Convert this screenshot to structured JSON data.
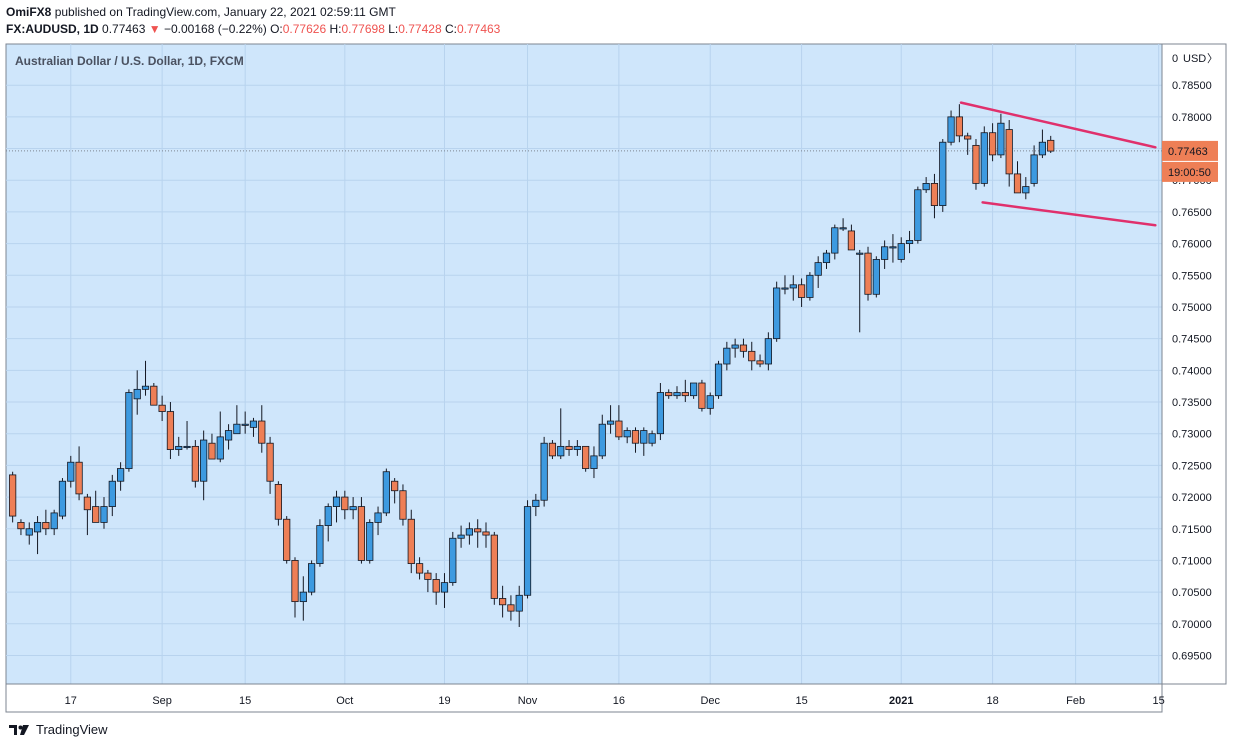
{
  "header": {
    "publisher": "OmiFX8",
    "published_text": "published on TradingView.com, January 22, 2021 02:59:11 GMT",
    "symbol": "FX:AUDUSD, 1D",
    "last": "0.77463",
    "arrow": "▼",
    "change": "−0.00168 (−0.22%)",
    "o_label": "O:",
    "o_value": "0.77626",
    "h_label": "H:",
    "h_value": "0.77698",
    "l_label": "L:",
    "l_value": "0.77428",
    "c_label": "C:",
    "c_value": "0.77463"
  },
  "footer": {
    "brand": "TradingView",
    "logo_icon": "tradingview-logo-icon"
  },
  "colors": {
    "background": "#cfe6fb",
    "grid": "#b8d3ee",
    "up": "#3d9ae0",
    "down": "#ee7f56",
    "wick": "#131722",
    "trendline": "#e0306c",
    "price_tag": "#ee7f56"
  },
  "chart_data": {
    "type": "candlestick",
    "title": "Australian Dollar / U.S. Dollar, 1D, FXCM",
    "currency_label": "USD",
    "ylim": [
      0.6905,
      0.7915
    ],
    "y_ticks": [
      0.695,
      0.7,
      0.705,
      0.71,
      0.715,
      0.72,
      0.725,
      0.73,
      0.735,
      0.74,
      0.745,
      0.75,
      0.755,
      0.76,
      0.765,
      0.77,
      0.775,
      0.78,
      0.785
    ],
    "y_tick_labels": [
      "0.69500",
      "0.70000",
      "0.70500",
      "0.71000",
      "0.71500",
      "0.72000",
      "0.72500",
      "0.73000",
      "0.73500",
      "0.74000",
      "0.74500",
      "0.75000",
      "0.75500",
      "0.76000",
      "0.76500",
      "0.77000",
      "0.77500",
      "0.78000",
      "0.78500"
    ],
    "x_ticks": [
      {
        "label": "17",
        "index": 7,
        "bold": false
      },
      {
        "label": "Sep",
        "index": 18,
        "bold": false
      },
      {
        "label": "15",
        "index": 28,
        "bold": false
      },
      {
        "label": "Oct",
        "index": 40,
        "bold": false
      },
      {
        "label": "19",
        "index": 52,
        "bold": false
      },
      {
        "label": "Nov",
        "index": 62,
        "bold": false
      },
      {
        "label": "16",
        "index": 73,
        "bold": false
      },
      {
        "label": "Dec",
        "index": 84,
        "bold": false
      },
      {
        "label": "15",
        "index": 95,
        "bold": false
      },
      {
        "label": "2021",
        "index": 107,
        "bold": true
      },
      {
        "label": "18",
        "index": 118,
        "bold": false
      },
      {
        "label": "Feb",
        "index": 128,
        "bold": false
      },
      {
        "label": "15",
        "index": 138,
        "bold": false
      }
    ],
    "x_range": [
      -0.8,
      138.4
    ],
    "last_price": 0.77463,
    "last_price_label": "0.77463",
    "countdown": "19:00:50",
    "candles": [
      [
        0.7235,
        0.724,
        0.716,
        0.717
      ],
      [
        0.716,
        0.7165,
        0.714,
        0.715
      ],
      [
        0.714,
        0.716,
        0.7125,
        0.715
      ],
      [
        0.7145,
        0.717,
        0.711,
        0.716
      ],
      [
        0.716,
        0.718,
        0.714,
        0.715
      ],
      [
        0.715,
        0.718,
        0.714,
        0.7175
      ],
      [
        0.717,
        0.723,
        0.7165,
        0.7225
      ],
      [
        0.7225,
        0.7265,
        0.7215,
        0.7255
      ],
      [
        0.7255,
        0.728,
        0.7195,
        0.7205
      ],
      [
        0.72,
        0.7205,
        0.714,
        0.718
      ],
      [
        0.7185,
        0.721,
        0.716,
        0.716
      ],
      [
        0.716,
        0.72,
        0.715,
        0.7185
      ],
      [
        0.7185,
        0.7235,
        0.717,
        0.7225
      ],
      [
        0.7225,
        0.7255,
        0.721,
        0.7245
      ],
      [
        0.7245,
        0.737,
        0.724,
        0.7365
      ],
      [
        0.7355,
        0.74,
        0.733,
        0.737
      ],
      [
        0.737,
        0.7415,
        0.736,
        0.7375
      ],
      [
        0.7375,
        0.738,
        0.7345,
        0.7345
      ],
      [
        0.7345,
        0.736,
        0.732,
        0.7335
      ],
      [
        0.7335,
        0.735,
        0.726,
        0.7275
      ],
      [
        0.7275,
        0.7295,
        0.7265,
        0.728
      ],
      [
        0.728,
        0.732,
        0.7275,
        0.728
      ],
      [
        0.728,
        0.729,
        0.7215,
        0.7225
      ],
      [
        0.7225,
        0.7305,
        0.7195,
        0.729
      ],
      [
        0.7285,
        0.73,
        0.727,
        0.726
      ],
      [
        0.726,
        0.7335,
        0.7255,
        0.7295
      ],
      [
        0.729,
        0.7315,
        0.7275,
        0.7305
      ],
      [
        0.73,
        0.7345,
        0.73,
        0.7315
      ],
      [
        0.7315,
        0.7335,
        0.73,
        0.7315
      ],
      [
        0.731,
        0.7325,
        0.7295,
        0.732
      ],
      [
        0.732,
        0.7345,
        0.727,
        0.7285
      ],
      [
        0.7285,
        0.7295,
        0.7205,
        0.7225
      ],
      [
        0.722,
        0.7225,
        0.7155,
        0.7165
      ],
      [
        0.7165,
        0.717,
        0.7095,
        0.71
      ],
      [
        0.71,
        0.7105,
        0.701,
        0.7035
      ],
      [
        0.7035,
        0.7075,
        0.7005,
        0.705
      ],
      [
        0.705,
        0.71,
        0.7045,
        0.7095
      ],
      [
        0.7095,
        0.7165,
        0.709,
        0.7155
      ],
      [
        0.7155,
        0.719,
        0.713,
        0.7185
      ],
      [
        0.7185,
        0.721,
        0.716,
        0.72
      ],
      [
        0.72,
        0.721,
        0.7165,
        0.718
      ],
      [
        0.718,
        0.72,
        0.7165,
        0.7185
      ],
      [
        0.7185,
        0.72,
        0.7095,
        0.71
      ],
      [
        0.71,
        0.7165,
        0.7095,
        0.716
      ],
      [
        0.716,
        0.7185,
        0.714,
        0.7175
      ],
      [
        0.7175,
        0.7245,
        0.717,
        0.724
      ],
      [
        0.7225,
        0.723,
        0.719,
        0.721
      ],
      [
        0.721,
        0.722,
        0.7155,
        0.7165
      ],
      [
        0.7165,
        0.718,
        0.708,
        0.7095
      ],
      [
        0.7095,
        0.7105,
        0.707,
        0.708
      ],
      [
        0.708,
        0.7085,
        0.705,
        0.707
      ],
      [
        0.707,
        0.708,
        0.703,
        0.705
      ],
      [
        0.705,
        0.708,
        0.7025,
        0.7065
      ],
      [
        0.7065,
        0.7145,
        0.706,
        0.7135
      ],
      [
        0.7135,
        0.7155,
        0.712,
        0.714
      ],
      [
        0.714,
        0.716,
        0.7125,
        0.715
      ],
      [
        0.715,
        0.7165,
        0.712,
        0.7145
      ],
      [
        0.7145,
        0.716,
        0.712,
        0.714
      ],
      [
        0.714,
        0.7145,
        0.703,
        0.704
      ],
      [
        0.704,
        0.706,
        0.701,
        0.703
      ],
      [
        0.703,
        0.7045,
        0.7005,
        0.702
      ],
      [
        0.702,
        0.706,
        0.6995,
        0.7045
      ],
      [
        0.7045,
        0.7195,
        0.704,
        0.7185
      ],
      [
        0.7185,
        0.7205,
        0.717,
        0.7195
      ],
      [
        0.7195,
        0.7295,
        0.7185,
        0.7285
      ],
      [
        0.7285,
        0.729,
        0.726,
        0.7265
      ],
      [
        0.7265,
        0.734,
        0.726,
        0.728
      ],
      [
        0.728,
        0.729,
        0.7265,
        0.7275
      ],
      [
        0.7275,
        0.729,
        0.7265,
        0.728
      ],
      [
        0.728,
        0.728,
        0.724,
        0.7245
      ],
      [
        0.7245,
        0.728,
        0.723,
        0.7265
      ],
      [
        0.7265,
        0.733,
        0.726,
        0.7315
      ],
      [
        0.7315,
        0.7345,
        0.73,
        0.732
      ],
      [
        0.732,
        0.7345,
        0.729,
        0.7295
      ],
      [
        0.7295,
        0.731,
        0.7285,
        0.7305
      ],
      [
        0.7305,
        0.731,
        0.727,
        0.7285
      ],
      [
        0.7285,
        0.731,
        0.7265,
        0.7305
      ],
      [
        0.7285,
        0.7305,
        0.728,
        0.73
      ],
      [
        0.73,
        0.738,
        0.729,
        0.7365
      ],
      [
        0.7365,
        0.737,
        0.7355,
        0.736
      ],
      [
        0.736,
        0.7375,
        0.7355,
        0.7365
      ],
      [
        0.7365,
        0.7385,
        0.735,
        0.736
      ],
      [
        0.736,
        0.7375,
        0.7355,
        0.738
      ],
      [
        0.738,
        0.7385,
        0.7335,
        0.734
      ],
      [
        0.734,
        0.7365,
        0.733,
        0.736
      ],
      [
        0.736,
        0.7415,
        0.7355,
        0.741
      ],
      [
        0.741,
        0.7445,
        0.74,
        0.7435
      ],
      [
        0.7435,
        0.745,
        0.742,
        0.744
      ],
      [
        0.744,
        0.745,
        0.742,
        0.743
      ],
      [
        0.743,
        0.7445,
        0.74,
        0.7415
      ],
      [
        0.7415,
        0.7425,
        0.7405,
        0.741
      ],
      [
        0.741,
        0.746,
        0.74,
        0.745
      ],
      [
        0.745,
        0.754,
        0.7445,
        0.753
      ],
      [
        0.753,
        0.755,
        0.752,
        0.753
      ],
      [
        0.753,
        0.755,
        0.751,
        0.7535
      ],
      [
        0.7535,
        0.7545,
        0.75,
        0.7515
      ],
      [
        0.7515,
        0.7555,
        0.751,
        0.755
      ],
      [
        0.755,
        0.758,
        0.753,
        0.757
      ],
      [
        0.757,
        0.759,
        0.756,
        0.7585
      ],
      [
        0.7585,
        0.763,
        0.7575,
        0.7625
      ],
      [
        0.7625,
        0.764,
        0.762,
        0.7625
      ],
      [
        0.762,
        0.763,
        0.759,
        0.759
      ],
      [
        0.7585,
        0.759,
        0.746,
        0.7585
      ],
      [
        0.7585,
        0.7595,
        0.751,
        0.752
      ],
      [
        0.752,
        0.758,
        0.7515,
        0.7575
      ],
      [
        0.7575,
        0.7605,
        0.756,
        0.7595
      ],
      [
        0.7595,
        0.7615,
        0.757,
        0.7595
      ],
      [
        0.7575,
        0.761,
        0.757,
        0.76
      ],
      [
        0.76,
        0.762,
        0.7585,
        0.7605
      ],
      [
        0.7605,
        0.769,
        0.76,
        0.7685
      ],
      [
        0.7685,
        0.7705,
        0.768,
        0.7695
      ],
      [
        0.7695,
        0.771,
        0.764,
        0.766
      ],
      [
        0.766,
        0.7765,
        0.765,
        0.776
      ],
      [
        0.776,
        0.781,
        0.7755,
        0.78
      ],
      [
        0.78,
        0.782,
        0.776,
        0.777
      ],
      [
        0.777,
        0.7775,
        0.774,
        0.7765
      ],
      [
        0.7755,
        0.7765,
        0.7685,
        0.7695
      ],
      [
        0.7695,
        0.7785,
        0.769,
        0.7775
      ],
      [
        0.7775,
        0.779,
        0.773,
        0.774
      ],
      [
        0.774,
        0.7805,
        0.7735,
        0.779
      ],
      [
        0.778,
        0.7795,
        0.769,
        0.771
      ],
      [
        0.771,
        0.773,
        0.768,
        0.768
      ],
      [
        0.768,
        0.7705,
        0.767,
        0.769
      ],
      [
        0.7695,
        0.7755,
        0.769,
        0.774
      ],
      [
        0.774,
        0.778,
        0.7735,
        0.776
      ],
      [
        0.7763,
        0.777,
        0.7743,
        0.7746
      ]
    ],
    "trendlines": [
      {
        "name": "upper-trendline",
        "from": [
          114.2,
          0.78225
        ],
        "to": [
          137.6,
          0.7752
        ]
      },
      {
        "name": "lower-trendline",
        "from": [
          116.8,
          0.7665
        ],
        "to": [
          137.6,
          0.7629
        ]
      }
    ]
  }
}
